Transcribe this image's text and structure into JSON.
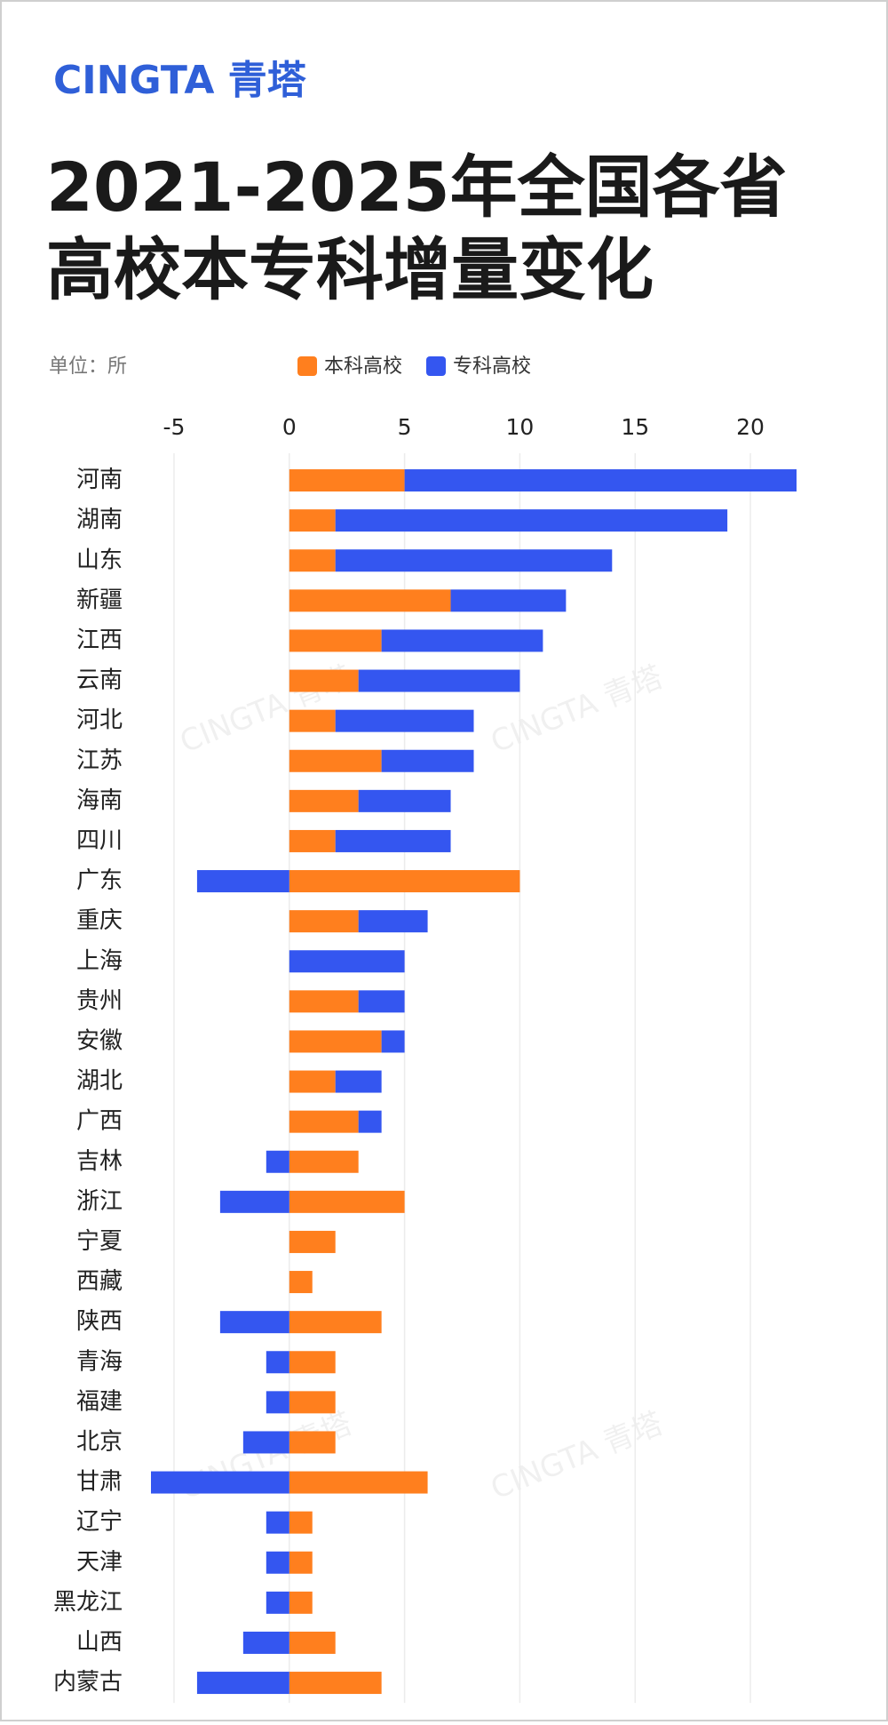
{
  "chart_data": {
    "type": "bar",
    "orientation": "horizontal",
    "stacked": true,
    "brand": "CINGTA 青塔",
    "title_lines": [
      "2021-2025年全国各省",
      "高校本专科增量变化"
    ],
    "unit_label": "单位：所",
    "watermark": "CINGTA 青塔",
    "categories": [
      "河南",
      "湖南",
      "山东",
      "新疆",
      "江西",
      "云南",
      "河北",
      "江苏",
      "海南",
      "四川",
      "广东",
      "重庆",
      "上海",
      "贵州",
      "安徽",
      "湖北",
      "广西",
      "吉林",
      "浙江",
      "宁夏",
      "西藏",
      "陕西",
      "青海",
      "福建",
      "北京",
      "甘肃",
      "辽宁",
      "天津",
      "黑龙江",
      "山西",
      "内蒙古"
    ],
    "series": [
      {
        "name": "本科高校",
        "color": "#ff7f1e",
        "values": [
          5,
          2,
          2,
          7,
          4,
          3,
          2,
          4,
          3,
          2,
          10,
          3,
          0,
          3,
          4,
          2,
          3,
          3,
          5,
          2,
          1,
          4,
          2,
          2,
          2,
          6,
          1,
          1,
          1,
          2,
          4
        ]
      },
      {
        "name": "专科高校",
        "color": "#3456f0",
        "values": [
          17,
          17,
          12,
          5,
          7,
          7,
          6,
          4,
          4,
          5,
          -4,
          3,
          5,
          2,
          1,
          2,
          1,
          -1,
          -3,
          0,
          0,
          -3,
          -1,
          -1,
          -2,
          -6,
          -1,
          -1,
          -1,
          -2,
          -4
        ]
      }
    ],
    "xlim": [
      -6,
      22
    ],
    "xticks": [
      -5,
      0,
      5,
      10,
      15,
      20
    ],
    "grid": true
  }
}
